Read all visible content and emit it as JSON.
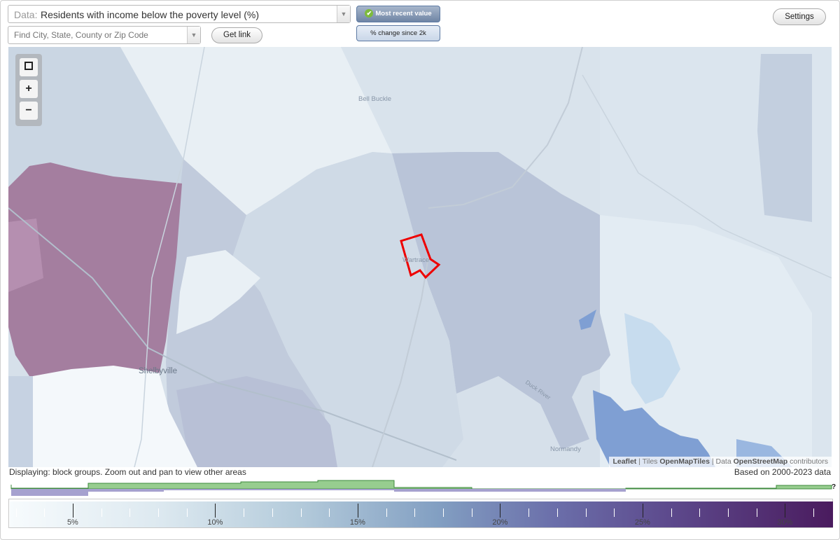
{
  "data_select": {
    "prefix": "Data:",
    "value": "Residents with income below the poverty level (%)"
  },
  "search": {
    "placeholder": "Find City, State, County or Zip Code"
  },
  "buttons": {
    "get_link": "Get link",
    "settings": "Settings",
    "most_recent": "Most recent value",
    "pct_change": "% change since 2k"
  },
  "map": {
    "places": {
      "bell_buckle": "Bell Buckle",
      "wartrace": "Wartrace",
      "shelbyville": "Shelbyville",
      "normandy": "Normandy",
      "river": "Duck River"
    },
    "attribution": {
      "leaflet": "Leaflet",
      "sep1": " | Tiles ",
      "tiles": "OpenMapTiles",
      "sep2": " | Data ",
      "data": "OpenStreetMap",
      "suffix": " contributors"
    },
    "colors": {
      "low": "#e9f1f6",
      "mid": "#c7d3e1",
      "midhigh": "#b7c2d7",
      "high": "#a47e9f",
      "water": "#7f9fd3",
      "highlight": "#ee0000"
    }
  },
  "status": {
    "left": "Displaying: block groups. Zoom out and pan to view other areas",
    "right": "Based on 2000-2023 data"
  },
  "legend": {
    "labels": [
      "5%",
      "10%",
      "15%",
      "20%",
      "25%",
      "30%"
    ],
    "histogram_help": "?"
  }
}
